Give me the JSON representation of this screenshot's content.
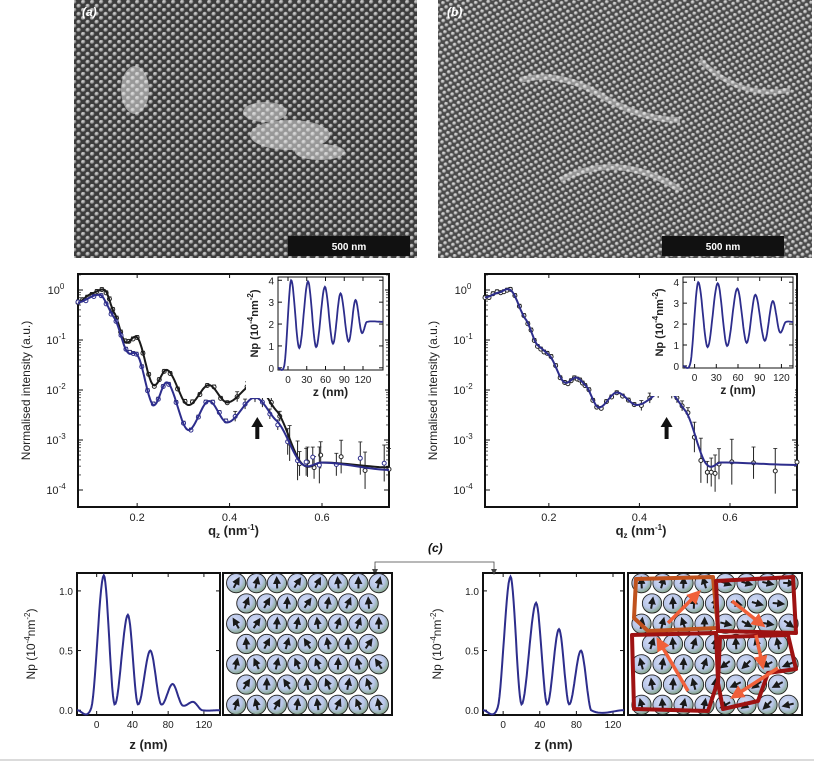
{
  "figure": {
    "panel_a": {
      "label": "(a)",
      "scale_bar": "500 nm"
    },
    "panel_b": {
      "label": "(b)",
      "scale_bar": "500 nm"
    },
    "panel_c": {
      "label": "(c)"
    }
  },
  "colors": {
    "fit_blue": "#2d2d8c",
    "data_black": "#1a1a1a",
    "domain_red": "#9e1212",
    "domain_orange": "#c0521e",
    "arrow_orange": "#f0603a",
    "sphere_blue": "#c9d3f0",
    "sphere_green": "#7fa67f"
  },
  "chart_data": [
    {
      "id": "reflectivity-a",
      "type": "line",
      "ylabel": "Normalised intensity (a.u.)",
      "xlabel": {
        "main": "q",
        "sub": "z",
        "rest": " (nm",
        "sup": "-1",
        "end": ")"
      },
      "xlim": [
        0.072,
        0.745
      ],
      "ylim_log10": [
        -4.34,
        0.32
      ],
      "yscale": "log",
      "xticks": [
        0.2,
        0.4,
        0.6
      ],
      "xticklabels": [
        "0.2",
        "0.4",
        "0.6"
      ],
      "yticks_log10": [
        0,
        -1,
        -2,
        -3,
        -4
      ],
      "yticklabels": [
        {
          "base": "10",
          "exp": "0"
        },
        {
          "base": "10",
          "exp": "-1"
        },
        {
          "base": "10",
          "exp": "-2"
        },
        {
          "base": "10",
          "exp": "-3"
        },
        {
          "base": "10",
          "exp": "-4"
        }
      ],
      "annotation_arrow_q": 0.46,
      "series": [
        {
          "name": "sample-1 (black)",
          "color": "#1a1a1a",
          "x": [
            0.072,
            0.1,
            0.13,
            0.15,
            0.175,
            0.2,
            0.235,
            0.265,
            0.31,
            0.355,
            0.395,
            0.455,
            0.5,
            0.56,
            0.6,
            0.745
          ],
          "log10_y": [
            -0.25,
            -0.08,
            0.0,
            -0.45,
            -1.05,
            -0.95,
            -1.9,
            -1.6,
            -2.3,
            -1.9,
            -2.25,
            -1.88,
            -2.4,
            -3.5,
            -3.45,
            -3.55
          ]
        },
        {
          "name": "sample-2 (blue)",
          "color": "#2d2d8c",
          "x": [
            0.072,
            0.12,
            0.15,
            0.18,
            0.2,
            0.235,
            0.265,
            0.31,
            0.355,
            0.395,
            0.455,
            0.5,
            0.56,
            0.6,
            0.745
          ],
          "log10_y": [
            -0.25,
            -0.1,
            -0.55,
            -1.25,
            -1.3,
            -2.3,
            -1.85,
            -2.8,
            -2.22,
            -2.65,
            -2.15,
            -2.6,
            -3.5,
            -3.45,
            -3.6
          ]
        }
      ]
    },
    {
      "id": "sld-inset-a",
      "type": "line",
      "ylabel": {
        "a": "Np (10",
        "sup1": "-4",
        "b": "nm",
        "sup2": "-2",
        "c": ")"
      },
      "xlabel": "z (nm)",
      "xlim": [
        -16,
        152
      ],
      "ylim": [
        -0.1,
        4.15
      ],
      "xticks": [
        0,
        30,
        60,
        90,
        120
      ],
      "xticklabels": [
        "0",
        "30",
        "60",
        "90",
        "120"
      ],
      "yticks": [
        0,
        1,
        2,
        3,
        4
      ],
      "yticklabels": [
        "0",
        "1",
        "2",
        "3",
        "4"
      ],
      "series": [
        {
          "name": "profile",
          "color": "#2d2d8c",
          "x": [
            -16,
            -6,
            5,
            18,
            32,
            45,
            59,
            72,
            84,
            97,
            108,
            118,
            126,
            152
          ],
          "y": [
            0,
            0.1,
            4.0,
            0.9,
            3.95,
            0.95,
            3.7,
            1.1,
            3.4,
            1.2,
            3.1,
            1.6,
            2.1,
            2.1
          ]
        }
      ]
    },
    {
      "id": "reflectivity-b",
      "type": "line",
      "ylabel": "Normalised intensity (a.u.)",
      "xlabel": {
        "main": "q",
        "sub": "z",
        "rest": " (nm",
        "sup": "-1",
        "end": ")"
      },
      "xlim": [
        0.059,
        0.748
      ],
      "ylim_log10": [
        -4.34,
        0.32
      ],
      "yscale": "log",
      "xticks": [
        0.2,
        0.4,
        0.6
      ],
      "xticklabels": [
        "0.2",
        "0.4",
        "0.6"
      ],
      "yticks_log10": [
        0,
        -1,
        -2,
        -3,
        -4
      ],
      "yticklabels": [
        {
          "base": "10",
          "exp": "0"
        },
        {
          "base": "10",
          "exp": "-1"
        },
        {
          "base": "10",
          "exp": "-2"
        },
        {
          "base": "10",
          "exp": "-3"
        },
        {
          "base": "10",
          "exp": "-4"
        }
      ],
      "annotation_arrow_q": 0.46,
      "series": [
        {
          "name": "fit",
          "color": "#2d2d8c",
          "x": [
            0.059,
            0.09,
            0.115,
            0.15,
            0.175,
            0.2,
            0.235,
            0.26,
            0.28,
            0.31,
            0.35,
            0.395,
            0.46,
            0.5,
            0.55,
            0.58,
            0.748
          ],
          "log10_y": [
            -0.15,
            -0.05,
            0.0,
            -0.6,
            -1.1,
            -1.3,
            -1.85,
            -1.75,
            -1.9,
            -2.35,
            -2.05,
            -2.3,
            -2.0,
            -2.4,
            -3.5,
            -3.45,
            -3.5
          ]
        }
      ]
    },
    {
      "id": "sld-inset-b",
      "type": "line",
      "ylabel": {
        "a": "Np (10",
        "sup1": "-4",
        "b": "nm",
        "sup2": "-2",
        "c": ")"
      },
      "xlabel": "z (nm)",
      "xlim": [
        -16,
        136
      ],
      "ylim": [
        -0.1,
        4.25
      ],
      "xticks": [
        0,
        30,
        60,
        90,
        120
      ],
      "xticklabels": [
        "0",
        "30",
        "60",
        "90",
        "120"
      ],
      "yticks": [
        0,
        1,
        2,
        3,
        4
      ],
      "yticklabels": [
        "0",
        "1",
        "2",
        "3",
        "4"
      ],
      "series": [
        {
          "name": "profile",
          "color": "#2d2d8c",
          "x": [
            -16,
            -6,
            5,
            18,
            32,
            45,
            59,
            72,
            84,
            97,
            108,
            118,
            126,
            136
          ],
          "y": [
            0,
            0.1,
            4.0,
            0.9,
            3.95,
            0.95,
            3.7,
            1.1,
            3.4,
            1.2,
            3.1,
            1.6,
            2.1,
            2.1
          ]
        }
      ]
    },
    {
      "id": "np-profile-c1",
      "type": "line",
      "ylabel": {
        "a": "Np (10",
        "sup1": "-4",
        "b": "nm",
        "sup2": "-2",
        "c": ")"
      },
      "xlabel": "z (nm)",
      "xlim": [
        -22,
        138
      ],
      "ylim": [
        -0.04,
        1.15
      ],
      "xticks": [
        0,
        40,
        80,
        120
      ],
      "xticklabels": [
        "0",
        "40",
        "80",
        "120"
      ],
      "yticks": [
        0,
        0.5,
        1.0
      ],
      "yticklabels": [
        "0.0",
        "0.5",
        "1.0"
      ],
      "series": [
        {
          "name": "profile",
          "color": "#2d2d8c",
          "x": [
            -22,
            -6,
            8,
            20,
            35,
            46,
            60,
            72,
            85,
            96,
            108,
            118,
            138
          ],
          "y": [
            0,
            0.02,
            1.13,
            0.05,
            0.8,
            0.05,
            0.5,
            0.05,
            0.22,
            0.04,
            0.07,
            0.0,
            0.0
          ]
        }
      ]
    },
    {
      "id": "np-profile-c2",
      "type": "line",
      "ylabel": {
        "a": "Np (10",
        "sup1": "-4",
        "b": "nm",
        "sup2": "-2",
        "c": ")"
      },
      "xlabel": "z (nm)",
      "xlim": [
        -22,
        132
      ],
      "ylim": [
        -0.04,
        1.15
      ],
      "xticks": [
        0,
        40,
        80,
        120
      ],
      "xticklabels": [
        "0",
        "40",
        "80",
        "120"
      ],
      "yticks": [
        0,
        0.5,
        1.0
      ],
      "yticklabels": [
        "0.0",
        "0.5",
        "1.0"
      ],
      "series": [
        {
          "name": "profile",
          "color": "#2d2d8c",
          "x": [
            -22,
            -6,
            8,
            20,
            36,
            48,
            61,
            72,
            85,
            96,
            132
          ],
          "y": [
            0,
            0.02,
            1.12,
            0.05,
            0.9,
            0.05,
            0.68,
            0.05,
            0.5,
            0.0,
            0.0
          ]
        }
      ]
    }
  ]
}
